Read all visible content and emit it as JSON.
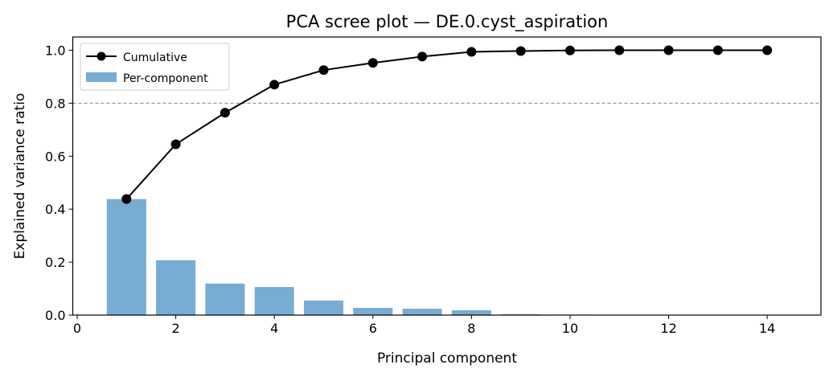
{
  "chart_data": {
    "type": "bar+line",
    "title": "PCA scree plot — DE.0.cyst_aspiration",
    "xlabel": "Principal component",
    "ylabel": "Explained variance ratio",
    "xlim": [
      -0.09,
      15.09
    ],
    "ylim": [
      0,
      1.05
    ],
    "xticks": [
      0,
      2,
      4,
      6,
      8,
      10,
      12,
      14
    ],
    "yticks": [
      "0.0",
      "0.2",
      "0.4",
      "0.6",
      "0.8",
      "1.0"
    ],
    "threshold": 0.8,
    "legend_position": "top-left",
    "grid": false,
    "x": [
      1,
      2,
      3,
      4,
      5,
      6,
      7,
      8,
      9,
      10,
      11,
      12,
      13,
      14
    ],
    "series": [
      {
        "name": "Cumulative",
        "type": "line",
        "color": "#000000",
        "values": [
          0.438,
          0.645,
          0.764,
          0.87,
          0.925,
          0.952,
          0.976,
          0.994,
          0.997,
          0.999,
          1.0,
          1.0,
          1.0,
          1.0
        ]
      },
      {
        "name": "Per-component",
        "type": "bar",
        "color": "#77acd3",
        "values": [
          0.438,
          0.207,
          0.119,
          0.106,
          0.055,
          0.027,
          0.024,
          0.018,
          0.003,
          0.002,
          0.001,
          0.0,
          0.0,
          0.0
        ]
      }
    ]
  }
}
